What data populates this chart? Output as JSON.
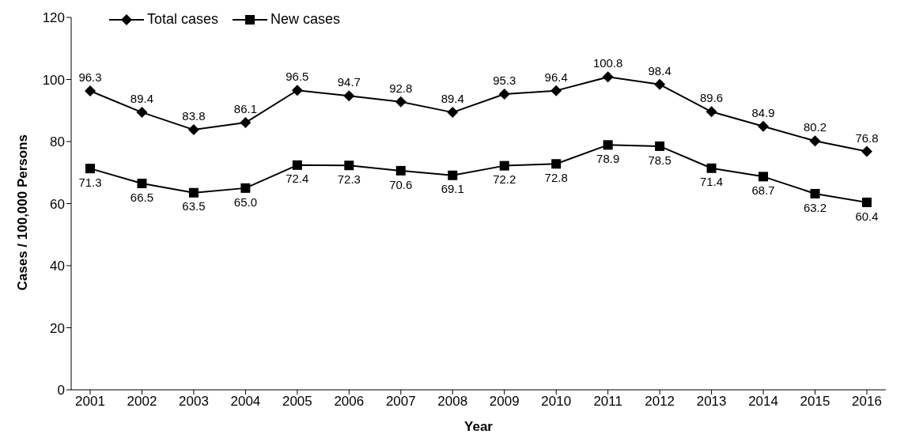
{
  "chart_data": {
    "type": "line",
    "xlabel": "Year",
    "ylabel": "Cases / 100,000 Persons",
    "categories": [
      "2001",
      "2002",
      "2003",
      "2004",
      "2005",
      "2006",
      "2007",
      "2008",
      "2009",
      "2010",
      "2011",
      "2012",
      "2013",
      "2014",
      "2015",
      "2016"
    ],
    "series": [
      {
        "name": "Total cases",
        "color": "#000000",
        "marker": "diamond",
        "values": [
          96.3,
          89.4,
          83.8,
          86.1,
          96.5,
          94.7,
          92.8,
          89.4,
          95.3,
          96.4,
          100.8,
          98.4,
          89.6,
          84.9,
          80.2,
          76.8
        ],
        "value_labels": [
          "96.3",
          "89.4",
          "83.8",
          "86.1",
          "96.5",
          "94.7",
          "92.8",
          "89.4",
          "95.3",
          "96.4",
          "100.8",
          "98.4",
          "89.6",
          "84.9",
          "80.2",
          "76.8"
        ]
      },
      {
        "name": "New cases",
        "color": "#000000",
        "marker": "square",
        "values": [
          71.3,
          66.5,
          63.5,
          65.0,
          72.4,
          72.3,
          70.6,
          69.1,
          72.2,
          72.8,
          78.9,
          78.5,
          71.4,
          68.7,
          63.2,
          60.4
        ],
        "value_labels": [
          "71.3",
          "66.5",
          "63.5",
          "65.0",
          "72.4",
          "72.3",
          "70.6",
          "69.1",
          "72.2",
          "72.8",
          "78.9",
          "78.5",
          "71.4",
          "68.7",
          "63.2",
          "60.4"
        ]
      }
    ],
    "ylim": [
      0,
      120
    ],
    "yticks": [
      0,
      20,
      40,
      60,
      80,
      100,
      120
    ],
    "legend": "top left",
    "grid": false,
    "line_style": "solid"
  }
}
